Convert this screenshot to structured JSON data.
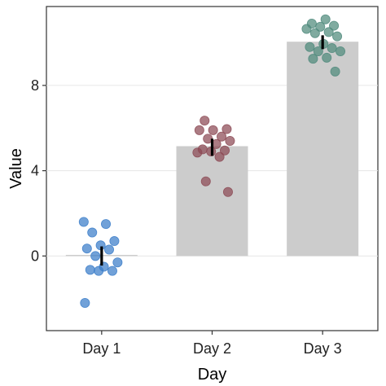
{
  "chart_data": {
    "type": "bar",
    "title": "",
    "xlabel": "Day",
    "ylabel": "Value",
    "categories": [
      "Day 1",
      "Day 2",
      "Day 3"
    ],
    "ylim": [
      -3.5,
      11.7
    ],
    "yticks": [
      0,
      4,
      8
    ],
    "ytick_labels": [
      "0",
      "4",
      "8"
    ],
    "grid": "horizontal",
    "legend": "none",
    "bar_color": "#cccccc",
    "point_colors": [
      "#3a7dc9",
      "#8c4a55",
      "#4f8a7c"
    ],
    "means": [
      0.05,
      5.15,
      10.05
    ],
    "error_bars": [
      {
        "low": -0.45,
        "high": 0.45
      },
      {
        "low": 4.7,
        "high": 5.5
      },
      {
        "low": 9.7,
        "high": 10.35
      }
    ],
    "points": [
      {
        "category": "Day 1",
        "values": [
          1.6,
          1.5,
          1.1,
          0.7,
          0.5,
          0.35,
          0.3,
          0.0,
          -0.3,
          -0.5,
          -0.65,
          -0.7,
          -0.7,
          -2.2
        ]
      },
      {
        "category": "Day 2",
        "values": [
          6.35,
          5.95,
          5.9,
          5.9,
          5.6,
          5.5,
          5.4,
          5.25,
          5.0,
          4.95,
          4.9,
          4.85,
          4.65,
          3.5,
          3.0
        ]
      },
      {
        "category": "Day 3",
        "values": [
          11.1,
          10.9,
          10.8,
          10.75,
          10.65,
          10.5,
          10.45,
          10.3,
          9.95,
          9.8,
          9.75,
          9.6,
          9.6,
          9.3,
          9.25,
          8.65
        ]
      }
    ]
  }
}
